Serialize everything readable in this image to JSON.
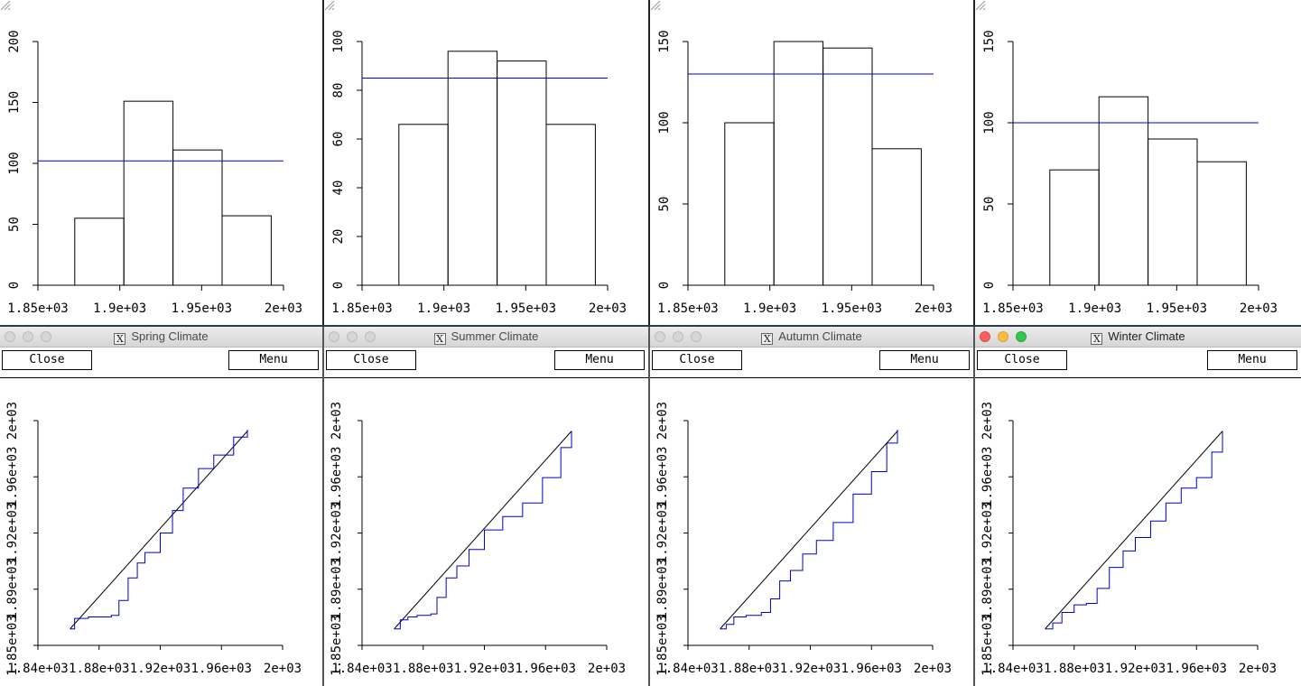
{
  "histograms": [
    {
      "yticks": [
        "0",
        "50",
        "100",
        "150",
        "200"
      ],
      "ymax": 200,
      "xticks": [
        "1.85e+03",
        "1.9e+03",
        "1.95e+03",
        "2e+03"
      ],
      "xticks_v": [
        1850,
        1900,
        1950,
        2000
      ],
      "bars": [
        55,
        151,
        111,
        57
      ],
      "hline": 102
    },
    {
      "yticks": [
        "0",
        "20",
        "40",
        "60",
        "80",
        "100"
      ],
      "ymax": 100,
      "xticks": [
        "1.85e+03",
        "1.9e+03",
        "1.95e+03",
        "2e+03"
      ],
      "xticks_v": [
        1850,
        1900,
        1950,
        2000
      ],
      "bars": [
        66,
        96,
        92,
        66
      ],
      "hline": 85
    },
    {
      "yticks": [
        "0",
        "50",
        "100",
        "150"
      ],
      "ymax": 150,
      "xticks": [
        "1.85e+03",
        "1.9e+03",
        "1.95e+03",
        "2e+03"
      ],
      "xticks_v": [
        1850,
        1900,
        1950,
        2000
      ],
      "bars": [
        100,
        150,
        146,
        84
      ],
      "hline": 130
    },
    {
      "yticks": [
        "0",
        "50",
        "100",
        "150"
      ],
      "ymax": 150,
      "xticks": [
        "1.85e+03",
        "1.9e+03",
        "1.95e+03",
        "2e+03"
      ],
      "xticks_v": [
        1850,
        1900,
        1950,
        2000
      ],
      "bars": [
        71,
        116,
        90,
        76
      ],
      "hline": 100
    }
  ],
  "windows": [
    {
      "title": "Spring Climate",
      "close_label": "Close",
      "menu_label": "Menu",
      "active": false
    },
    {
      "title": "Summer Climate",
      "close_label": "Close",
      "menu_label": "Menu",
      "active": false
    },
    {
      "title": "Autumn Climate",
      "close_label": "Close",
      "menu_label": "Menu",
      "active": false
    },
    {
      "title": "Winter Climate",
      "close_label": "Close",
      "menu_label": "Menu",
      "active": true
    }
  ],
  "qq": {
    "xticks": [
      "1.84e+03",
      "1.88e+03",
      "1.92e+03",
      "1.96e+03",
      "2e+03"
    ],
    "yticks": [
      "1.85e+03",
      "1.89e+03",
      "1.92e+03",
      "1.96e+03",
      "2e+03"
    ],
    "series": [
      [
        [
          1861,
          1861
        ],
        [
          1864,
          1868
        ],
        [
          1873,
          1869
        ],
        [
          1888,
          1870
        ],
        [
          1893,
          1880
        ],
        [
          1899,
          1895
        ],
        [
          1905,
          1905
        ],
        [
          1910,
          1912
        ],
        [
          1920,
          1925
        ],
        [
          1928,
          1940
        ],
        [
          1935,
          1955
        ],
        [
          1945,
          1968
        ],
        [
          1955,
          1977
        ],
        [
          1968,
          1989
        ],
        [
          1977,
          1994
        ]
      ],
      [
        [
          1861,
          1861
        ],
        [
          1865,
          1867
        ],
        [
          1870,
          1869
        ],
        [
          1876,
          1870
        ],
        [
          1885,
          1871
        ],
        [
          1889,
          1882
        ],
        [
          1895,
          1895
        ],
        [
          1902,
          1903
        ],
        [
          1910,
          1914
        ],
        [
          1920,
          1927
        ],
        [
          1932,
          1936
        ],
        [
          1945,
          1945
        ],
        [
          1958,
          1962
        ],
        [
          1970,
          1982
        ],
        [
          1977,
          1993
        ]
      ],
      [
        [
          1861,
          1861
        ],
        [
          1865,
          1864
        ],
        [
          1870,
          1869
        ],
        [
          1878,
          1870
        ],
        [
          1888,
          1872
        ],
        [
          1894,
          1881
        ],
        [
          1900,
          1893
        ],
        [
          1907,
          1900
        ],
        [
          1915,
          1911
        ],
        [
          1924,
          1920
        ],
        [
          1935,
          1932
        ],
        [
          1948,
          1951
        ],
        [
          1960,
          1966
        ],
        [
          1970,
          1985
        ],
        [
          1977,
          1994
        ]
      ],
      [
        [
          1861,
          1861
        ],
        [
          1866,
          1865
        ],
        [
          1872,
          1872
        ],
        [
          1880,
          1877
        ],
        [
          1888,
          1878
        ],
        [
          1895,
          1888
        ],
        [
          1903,
          1902
        ],
        [
          1912,
          1913
        ],
        [
          1920,
          1922
        ],
        [
          1930,
          1933
        ],
        [
          1940,
          1945
        ],
        [
          1950,
          1955
        ],
        [
          1960,
          1962
        ],
        [
          1970,
          1979
        ],
        [
          1977,
          1993
        ]
      ]
    ],
    "ref_line": [
      [
        1861,
        1861
      ],
      [
        1977,
        1993
      ]
    ]
  },
  "colors": {
    "series": "#0000cc",
    "axis": "#000000"
  }
}
